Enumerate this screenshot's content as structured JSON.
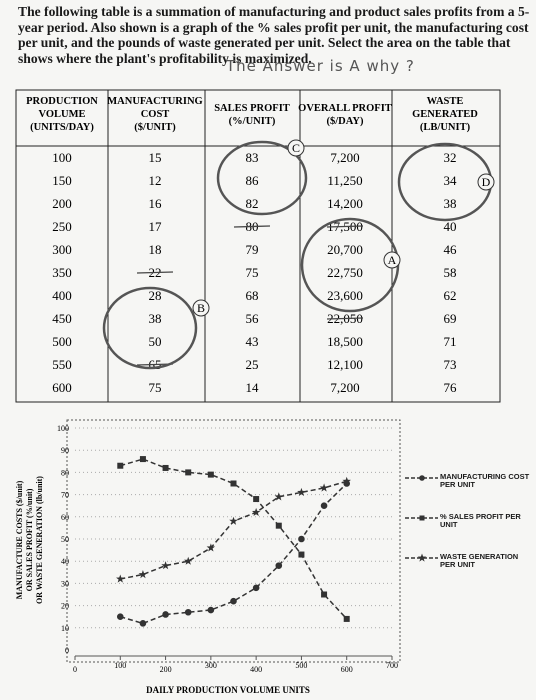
{
  "question": {
    "text": "The following table is a summation of manufacturing and product sales profits from a 5-year period. Also shown is a graph of the % sales profit per unit, the manufacturing cost per unit, and the pounds of waste generated per unit. Select the area on the table that shows where the plant's profitability is maximized.",
    "handwritten": "The Answer is A why ?"
  },
  "table": {
    "headers": [
      [
        "PRODUCTION",
        "VOLUME",
        "(UNITS/DAY)"
      ],
      [
        "MANUFACTURING",
        "COST",
        "($/UNIT)"
      ],
      [
        "SALES PROFIT",
        "(%/UNIT)"
      ],
      [
        "OVERALL PROFIT",
        "($/DAY)"
      ],
      [
        "WASTE",
        "GENERATED",
        "(LB/UNIT)"
      ]
    ],
    "rows": [
      [
        "100",
        "15",
        "83",
        "7,200",
        "32"
      ],
      [
        "150",
        "12",
        "86",
        "11,250",
        "34"
      ],
      [
        "200",
        "16",
        "82",
        "14,200",
        "38"
      ],
      [
        "250",
        "17",
        "80",
        "17,500",
        "40"
      ],
      [
        "300",
        "18",
        "79",
        "20,700",
        "46"
      ],
      [
        "350",
        "22",
        "75",
        "22,750",
        "58"
      ],
      [
        "400",
        "28",
        "68",
        "23,600",
        "62"
      ],
      [
        "450",
        "38",
        "56",
        "22,050",
        "69"
      ],
      [
        "500",
        "50",
        "43",
        "18,500",
        "71"
      ],
      [
        "550",
        "65",
        "25",
        "12,100",
        "73"
      ],
      [
        "600",
        "75",
        "14",
        "7,200",
        "76"
      ]
    ],
    "annotations": [
      "A",
      "B",
      "C",
      "D"
    ]
  },
  "chart_data": {
    "type": "line",
    "x_label": "DAILY PRODUCTION VOLUME UNITS",
    "y_label": [
      "MANUFACTURE COSTS ($/unit)",
      "OR SALES PROFIT (%/unit)",
      "OR WASTE GENERATION (lb/unit)"
    ],
    "x": [
      100,
      150,
      200,
      250,
      300,
      350,
      400,
      450,
      500,
      550,
      600
    ],
    "series": [
      {
        "name": "MANUFACTURING COST PER UNIT",
        "color": "#333333",
        "marker": "circle",
        "values": [
          15,
          12,
          16,
          17,
          18,
          22,
          28,
          38,
          50,
          65,
          75
        ]
      },
      {
        "name": "% SALES PROFIT PER UNIT",
        "color": "#333333",
        "marker": "square",
        "values": [
          83,
          86,
          82,
          80,
          79,
          75,
          68,
          56,
          43,
          25,
          14
        ]
      },
      {
        "name": "WASTE GENERATION PER UNIT",
        "color": "#333333",
        "marker": "star",
        "values": [
          32,
          34,
          38,
          40,
          46,
          58,
          62,
          69,
          71,
          73,
          76
        ]
      }
    ],
    "xlim": [
      0,
      700
    ],
    "xticks": [
      0,
      100,
      200,
      300,
      400,
      500,
      600,
      700
    ],
    "ylim": [
      0,
      100
    ],
    "yticks": [
      0,
      10,
      20,
      30,
      40,
      50,
      60,
      70,
      80,
      90,
      100
    ],
    "grid": true
  }
}
